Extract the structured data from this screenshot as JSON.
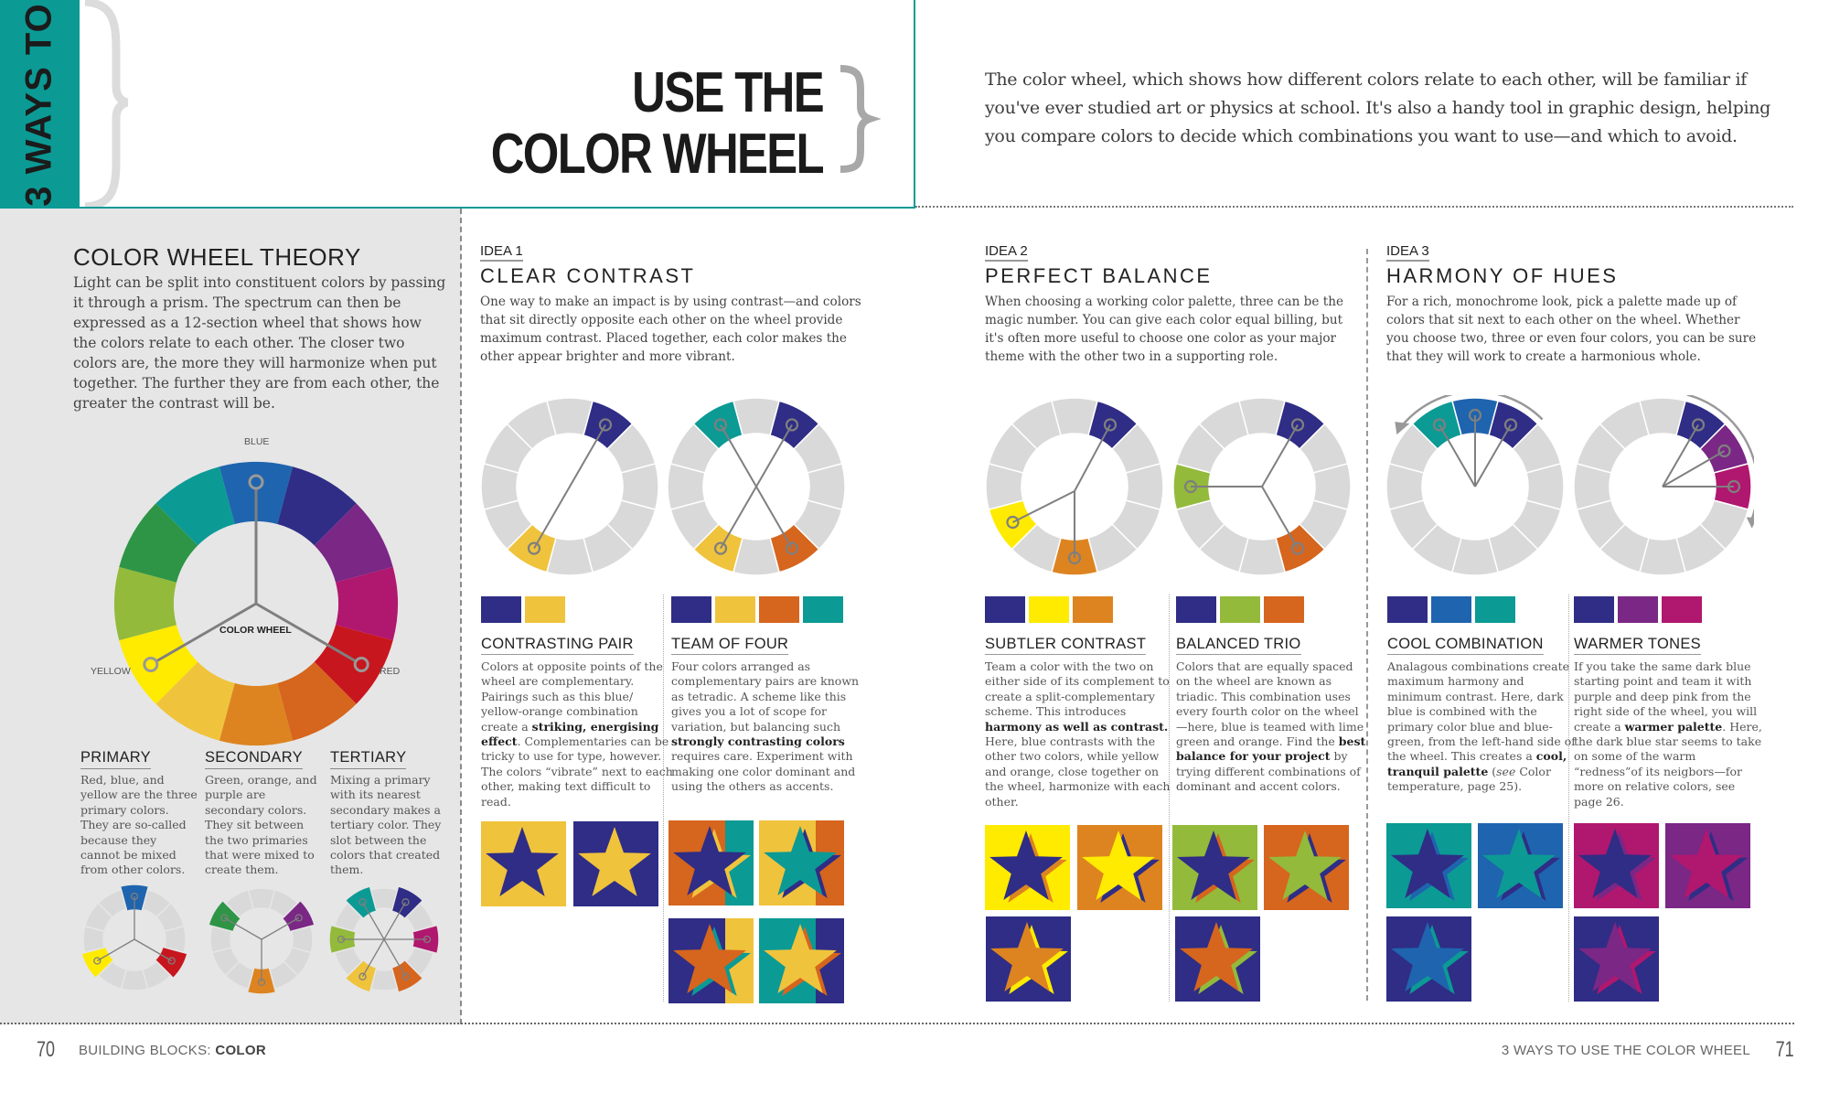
{
  "header": {
    "tab_text": "3 WAYS TO",
    "title_line1": "USE THE",
    "title_line2": "COLOR WHEEL",
    "intro": "The color wheel, which shows how different colors relate to each other, will be familiar if you've ever studied art or physics at school. It's also a handy tool in graphic design, helping you compare colors to decide which combinations you want to use—and which to avoid.",
    "accent_color": "#0c9a95"
  },
  "colors": {
    "blue": "#1f64ae",
    "dark_blue": "#2f2d85",
    "purple": "#7a2785",
    "magenta": "#b0176f",
    "red": "#c8161e",
    "red_orange": "#d6651e",
    "orange": "#dd8420",
    "yellow_orange": "#f0c33c",
    "yellow": "#ffeb00",
    "lime": "#93ba3b",
    "green": "#2e9546",
    "teal": "#0c9a95",
    "neutral": "#d9d9d9"
  },
  "wheel_order": [
    "blue",
    "dark_blue",
    "purple",
    "magenta",
    "red",
    "red_orange",
    "orange",
    "yellow_orange",
    "yellow",
    "lime",
    "green",
    "teal"
  ],
  "theory": {
    "title": "COLOR WHEEL THEORY",
    "body": "Light can be split into constituent colors by passing it through a prism. The spectrum can then be expressed as a 12-section wheel that shows how the colors relate to each other. The closer two colors are, the more they will harmonize when put together. The further they are from each other, the greater the contrast will be.",
    "wheel_center_label": "COLOR WHEEL",
    "wheel_labels": {
      "top": "BLUE",
      "left": "YELLOW",
      "right": "RED"
    },
    "categories": [
      {
        "title": "PRIMARY",
        "body": "Red, blue, and yellow are the three primary colors. They are so-called because they cannot be mixed from other colors.",
        "highlight": [
          0,
          4,
          8
        ]
      },
      {
        "title": "SECONDARY",
        "body": "Green, orange, and purple are secondary colors. They sit between the two primaries that were mixed to create them.",
        "highlight": [
          2,
          6,
          10
        ]
      },
      {
        "title": "TERTIARY",
        "body": "Mixing a primary with its nearest secondary makes a tertiary color. They slot between the colors that created them.",
        "highlight": [
          1,
          3,
          5,
          7,
          9,
          11
        ]
      }
    ]
  },
  "ideas": [
    {
      "label": "IDEA 1",
      "title": "CLEAR CONTRAST",
      "body": "One way to make an impact is by using contrast—and colors that sit directly opposite each other on the wheel provide maximum contrast. Placed together, each color makes the other appear brighter and more vibrant.",
      "schemes": [
        {
          "title": "CONTRASTING PAIR",
          "body_html": "Colors at opposite points of the wheel are complementary. Pairings such as this blue/ yellow-orange combination create a <b>striking, energising effect</b>. Complementaries can be tricky to use for type, however. The colors “vibrate” next to each other, making text difficult to read.",
          "highlight": [
            1,
            7
          ],
          "lines": "pair",
          "swatches": [
            "#2f2d85",
            "#f0c33c"
          ],
          "stars": [
            {
              "bg": [
                "#f0c33c"
              ],
              "star": "#2f2d85",
              "shadow": null
            },
            {
              "bg": [
                "#2f2d85"
              ],
              "star": "#f0c33c",
              "shadow": null
            }
          ]
        },
        {
          "title": "TEAM OF FOUR",
          "body_html": "Four colors arranged as complementary pairs are known as tetradic. A scheme like this gives you a lot of scope for variation, but balancing such <b>strongly contrasting colors</b> requires care. Experiment with making one color dominant and  using the others as accents.",
          "highlight": [
            1,
            5,
            7,
            11
          ],
          "lines": "cross",
          "swatches": [
            "#2f2d85",
            "#f0c33c",
            "#d6651e",
            "#0c9a95"
          ],
          "stars": [
            {
              "bg": [
                "#d6651e",
                "#0c9a95"
              ],
              "star": "#2f2d85",
              "shadow": "#f0c33c"
            },
            {
              "bg": [
                "#f0c33c",
                "#d6651e"
              ],
              "star": "#0c9a95",
              "shadow": "#2f2d85"
            },
            {
              "bg": [
                "#2f2d85",
                "#f0c33c"
              ],
              "star": "#d6651e",
              "shadow": "#0c9a95"
            },
            {
              "bg": [
                "#0c9a95",
                "#2f2d85"
              ],
              "star": "#f0c33c",
              "shadow": "#d6651e"
            }
          ]
        }
      ]
    },
    {
      "label": "IDEA 2",
      "title": "PERFECT BALANCE",
      "body": "When choosing a working color palette, three can be the magic number. You can give each color equal billing, but it's often more useful to choose one color as your major theme with the other two in a supporting role.",
      "schemes": [
        {
          "title": "SUBTLER CONTRAST",
          "body_html": "Team a color with the two on either side of its complement to create a split-complementary scheme. This introduces <b>harmony as well as contrast.</b> Here, blue contrasts with the other two colors, while yellow and orange, close together on the wheel, harmonize with each other.",
          "highlight": [
            1,
            6,
            8
          ],
          "lines": "split",
          "swatches": [
            "#2f2d85",
            "#ffeb00",
            "#dd8420"
          ],
          "stars": [
            {
              "bg": [
                "#ffeb00"
              ],
              "star": "#2f2d85",
              "shadow": "#dd8420"
            },
            {
              "bg": [
                "#dd8420"
              ],
              "star": "#ffeb00",
              "shadow": "#2f2d85"
            },
            {
              "bg": [
                "#2f2d85"
              ],
              "star": "#dd8420",
              "shadow": "#ffeb00"
            }
          ]
        },
        {
          "title": "BALANCED TRIO",
          "body_html": "Colors that are equally spaced on the wheel are known as triadic. This combination uses every fourth color on the wheel—here, blue is teamed with lime green and orange. Find the <b>best balance for your project</b> by trying different combinations of dominant and accent colors.",
          "highlight": [
            1,
            5,
            9
          ],
          "lines": "center",
          "swatches": [
            "#2f2d85",
            "#93ba3b",
            "#d6651e"
          ],
          "stars": [
            {
              "bg": [
                "#93ba3b"
              ],
              "star": "#2f2d85",
              "shadow": "#d6651e"
            },
            {
              "bg": [
                "#d6651e"
              ],
              "star": "#93ba3b",
              "shadow": "#2f2d85"
            },
            {
              "bg": [
                "#2f2d85"
              ],
              "star": "#d6651e",
              "shadow": "#93ba3b"
            }
          ]
        }
      ]
    },
    {
      "label": "IDEA 3",
      "title": "HARMONY OF HUES",
      "body": "For a rich, monochrome look, pick a palette made up of colors that sit next to each other on the wheel. Whether you choose two, three or even four colors, you can be sure that they will work to create a harmonious whole.",
      "schemes": [
        {
          "title": "COOL COMBINATION",
          "body_html": "Analagous combinations create maximum harmony and minimum contrast. Here, dark blue is combined with the primary color blue and blue-green, from the left-hand side of the wheel. This creates a <b>cool, tranquil palette</b> (<i>see</i> Color temperature, page 25).",
          "highlight": [
            11,
            0,
            1
          ],
          "lines": "center",
          "arrow": "ccw",
          "swatches": [
            "#2f2d85",
            "#1f64ae",
            "#0c9a95"
          ],
          "stars": [
            {
              "bg": [
                "#0c9a95"
              ],
              "star": "#2f2d85",
              "shadow": "#1f64ae"
            },
            {
              "bg": [
                "#1f64ae"
              ],
              "star": "#0c9a95",
              "shadow": "#2f2d85"
            },
            {
              "bg": [
                "#2f2d85"
              ],
              "star": "#1f64ae",
              "shadow": "#0c9a95"
            }
          ]
        },
        {
          "title": "WARMER TONES",
          "body_html": "If you take the same dark blue starting point and team it with purple and deep pink from the right side of the wheel, you will create a <b>warmer palette</b>. Here, the dark blue star seems to take on some of the warm “redness”of its neigbors—for more on relative colors, see page 26.",
          "highlight": [
            1,
            2,
            3
          ],
          "lines": "center",
          "arrow": "cw",
          "swatches": [
            "#2f2d85",
            "#7a2785",
            "#b0176f"
          ],
          "stars": [
            {
              "bg": [
                "#b0176f"
              ],
              "star": "#2f2d85",
              "shadow": "#7a2785"
            },
            {
              "bg": [
                "#7a2785"
              ],
              "star": "#b0176f",
              "shadow": "#2f2d85"
            },
            {
              "bg": [
                "#2f2d85"
              ],
              "star": "#7a2785",
              "shadow": "#b0176f"
            }
          ]
        }
      ]
    }
  ],
  "footer": {
    "left_page_number": "70",
    "left_section": "BUILDING BLOCKS:",
    "left_section_bold": "COLOR",
    "right_section": "3 WAYS TO USE THE COLOR WHEEL",
    "right_page_number": "71"
  }
}
